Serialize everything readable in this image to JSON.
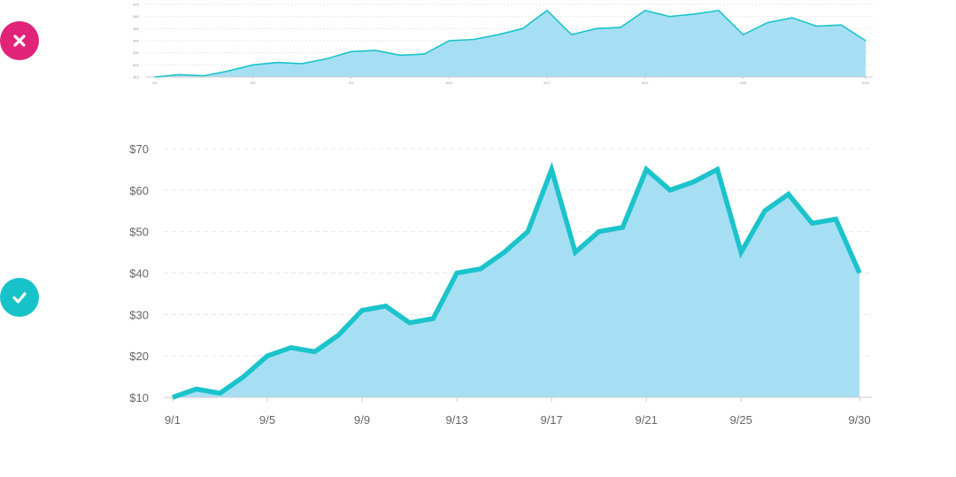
{
  "badges": {
    "bad": {
      "icon": "close-icon",
      "color": "#E2237A"
    },
    "good": {
      "icon": "checkmark-icon",
      "color": "#17C3C9"
    }
  },
  "colors": {
    "line": "#1BC3CB",
    "area": "#A6DFF3",
    "grid": "#E6E6E6",
    "axis": "#CCCCCC"
  },
  "chart_data": [
    {
      "type": "area",
      "variant": "bad-example",
      "x": [
        "9/1",
        "9/2",
        "9/3",
        "9/4",
        "9/5",
        "9/6",
        "9/7",
        "9/8",
        "9/9",
        "9/10",
        "9/11",
        "9/12",
        "9/13",
        "9/14",
        "9/15",
        "9/16",
        "9/17",
        "9/18",
        "9/19",
        "9/20",
        "9/21",
        "9/22",
        "9/23",
        "9/24",
        "9/25",
        "9/26",
        "9/27",
        "9/28",
        "9/29",
        "9/30"
      ],
      "values": [
        10,
        12,
        11,
        15,
        20,
        22,
        21,
        25,
        31,
        32,
        28,
        29,
        40,
        41,
        45,
        50,
        65,
        45,
        50,
        51,
        65,
        60,
        62,
        65,
        45,
        55,
        59,
        52,
        53,
        40
      ],
      "xticks": [
        "9/1",
        "9/5",
        "9/9",
        "9/13",
        "9/17",
        "9/21",
        "9/25",
        "9/30"
      ],
      "yticks": [
        "$10",
        "$20",
        "$30",
        "$40",
        "$50",
        "$60",
        "$70"
      ],
      "ylim": [
        10,
        70
      ],
      "grid": true
    },
    {
      "type": "area",
      "variant": "good-example",
      "x": [
        "9/1",
        "9/2",
        "9/3",
        "9/4",
        "9/5",
        "9/6",
        "9/7",
        "9/8",
        "9/9",
        "9/10",
        "9/11",
        "9/12",
        "9/13",
        "9/14",
        "9/15",
        "9/16",
        "9/17",
        "9/18",
        "9/19",
        "9/20",
        "9/21",
        "9/22",
        "9/23",
        "9/24",
        "9/25",
        "9/26",
        "9/27",
        "9/28",
        "9/29",
        "9/30"
      ],
      "values": [
        10,
        12,
        11,
        15,
        20,
        22,
        21,
        25,
        31,
        32,
        28,
        29,
        40,
        41,
        45,
        50,
        65,
        45,
        50,
        51,
        65,
        60,
        62,
        65,
        45,
        55,
        59,
        52,
        53,
        40
      ],
      "xticks": [
        "9/1",
        "9/5",
        "9/9",
        "9/13",
        "9/17",
        "9/21",
        "9/25",
        "9/30"
      ],
      "yticks": [
        "$10",
        "$20",
        "$30",
        "$40",
        "$50",
        "$60",
        "$70"
      ],
      "ylim": [
        10,
        70
      ],
      "grid": true
    }
  ]
}
